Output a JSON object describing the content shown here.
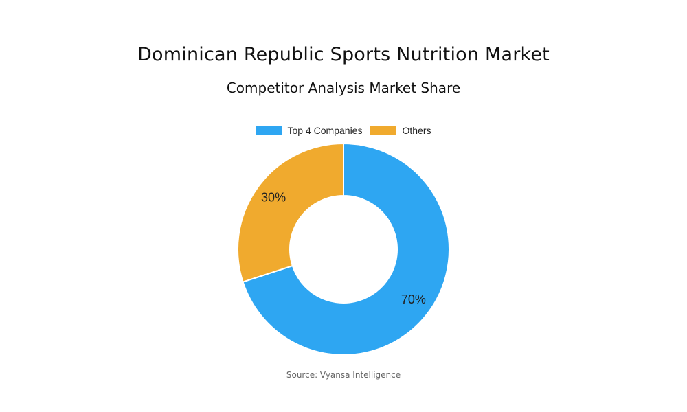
{
  "title": "Dominican Republic Sports Nutrition Market",
  "subtitle": "Competitor Analysis Market Share",
  "source": "Source: Vyansa Intelligence",
  "chart_data": {
    "type": "pie",
    "variant": "donut",
    "legend_position": "top",
    "slices": [
      {
        "label": "Top 4 Companies",
        "value": 70,
        "display": "70%",
        "color": "#2EA6F2"
      },
      {
        "label": "Others",
        "value": 30,
        "display": "30%",
        "color": "#F0AA2E"
      }
    ]
  }
}
